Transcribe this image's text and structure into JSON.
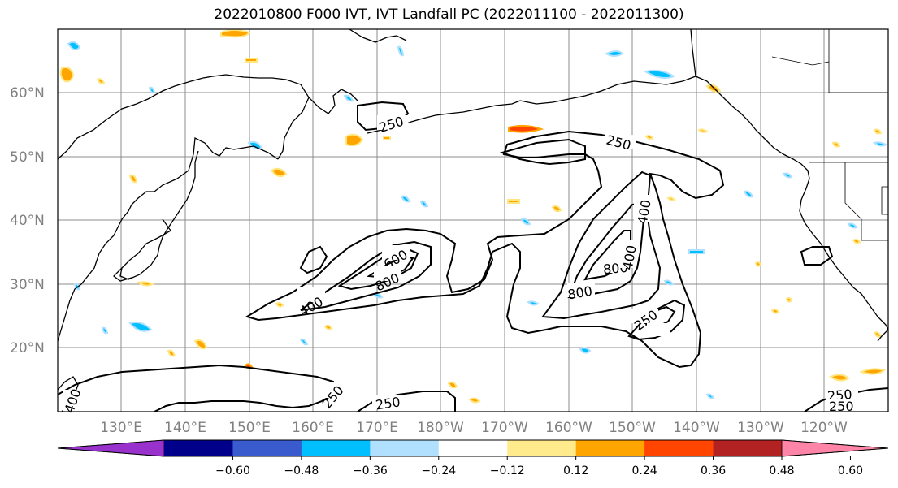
{
  "title": "2022010800 F000 IVT, IVT Landfall PC (2022011100 - 2022011300)",
  "map": {
    "lat_labels": [
      "60°N",
      "50°N",
      "40°N",
      "30°N",
      "20°N"
    ],
    "lon_labels": [
      "130°E",
      "140°E",
      "150°E",
      "160°E",
      "170°E",
      "180°W",
      "170°W",
      "160°W",
      "150°W",
      "140°W",
      "130°W",
      "120°W"
    ],
    "contour_labels": [
      "250",
      "250",
      "400",
      "600",
      "800",
      "400",
      "800",
      "800",
      "400",
      "250",
      "250",
      "250",
      "250",
      "250",
      "400"
    ],
    "colors": {
      "contour": "#000000",
      "grid": "#8c8c8c",
      "pos_weak": "#ffe680",
      "pos_mid": "#ffa500",
      "pos_strong": "#ff4500",
      "neg_weak": "#b0e0ff",
      "neg_mid": "#00bfff",
      "neg_strong": "#4060d0"
    }
  },
  "colorbar": {
    "colors": [
      "#9932cc",
      "#00008b",
      "#3a5bcd",
      "#00bfff",
      "#b0e0fe",
      "#ffffff",
      "#ffeb8b",
      "#ffa500",
      "#ff4500",
      "#b22222",
      "#ff85a8"
    ],
    "ticks": [
      "−0.60",
      "−0.48",
      "−0.36",
      "−0.24",
      "−0.12",
      "0.12",
      "0.24",
      "0.36",
      "0.48",
      "0.60"
    ]
  }
}
